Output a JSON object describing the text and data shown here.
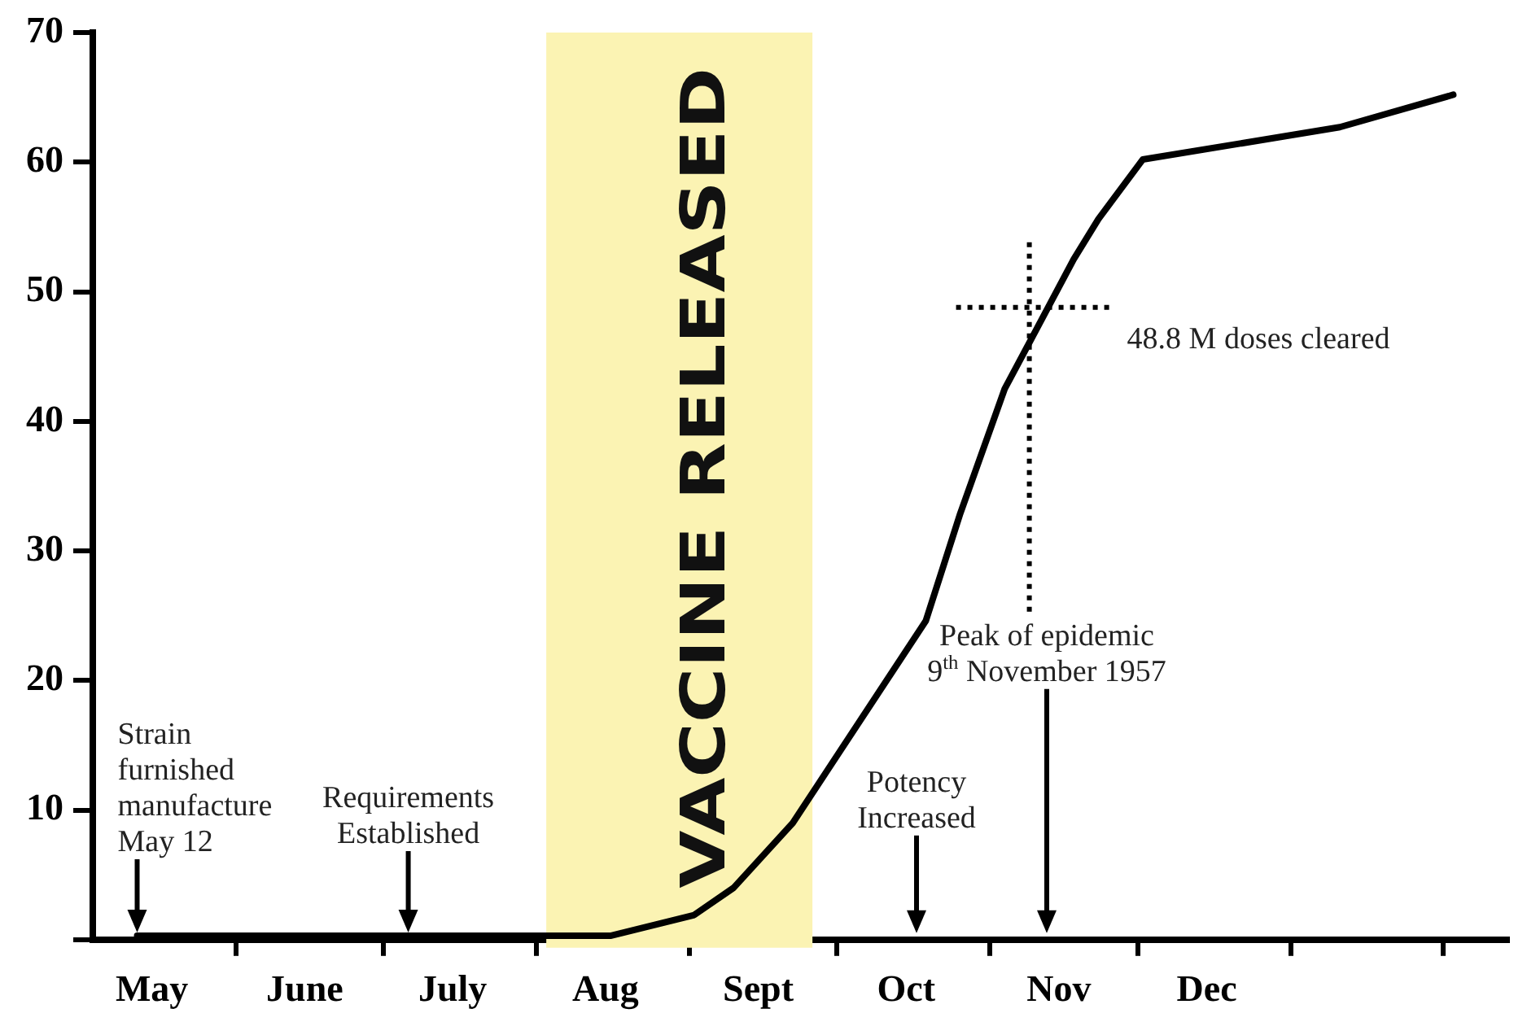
{
  "chart_data": {
    "type": "line",
    "x": [
      "1957-05-12",
      "1957-08-03",
      "1957-08-16",
      "1957-09-02",
      "1957-09-10",
      "1957-09-22",
      "1957-10-19",
      "1957-10-26",
      "1957-11-04",
      "1957-11-11",
      "1957-11-18",
      "1957-11-23",
      "1957-12-02",
      "1958-01-11",
      "1958-02-03"
    ],
    "series": [
      {
        "color": "#000000",
        "values": [
          0.3,
          0.3,
          0.3,
          1.9,
          4,
          9,
          24.6,
          32.9,
          42.5,
          47.5,
          52.5,
          55.6,
          60.2,
          62.7,
          65.2
        ]
      }
    ],
    "xlim": [
      "1957-05-03",
      "1958-02-14"
    ],
    "xticks": [
      {
        "value": "1957-05-15",
        "label": "May"
      },
      {
        "value": "1957-06-01",
        "label": null
      },
      {
        "value": "1957-06-15",
        "label": "June"
      },
      {
        "value": "1957-07-01",
        "label": null
      },
      {
        "value": "1957-07-15",
        "label": "July"
      },
      {
        "value": "1957-08-01",
        "label": null
      },
      {
        "value": "1957-08-15",
        "label": "Aug"
      },
      {
        "value": "1957-09-01",
        "label": null
      },
      {
        "value": "1957-09-15",
        "label": "Sept"
      },
      {
        "value": "1957-10-01",
        "label": null
      },
      {
        "value": "1957-10-15",
        "label": "Oct"
      },
      {
        "value": "1957-11-01",
        "label": null
      },
      {
        "value": "1957-11-15",
        "label": "Nov"
      },
      {
        "value": "1957-12-01",
        "label": null
      },
      {
        "value": "1957-12-15",
        "label": "Dec"
      },
      {
        "value": "1958-01-01",
        "label": null
      },
      {
        "value": "1958-02-01",
        "label": null
      }
    ],
    "ylim": [
      0,
      70
    ],
    "yticks": [
      {
        "value": 0,
        "label": null
      },
      10,
      20,
      30,
      40,
      50,
      60,
      70
    ],
    "grid": false,
    "legend": false,
    "marker": "none",
    "line_style": "solid",
    "bands": [
      {
        "axis": "x",
        "from": "1957-08-03",
        "to": "1957-09-26",
        "label": "VACCINE RELEASED",
        "color": "#fbf3b3"
      }
    ],
    "ref_lines": [
      {
        "axis": "y",
        "value": 48.8,
        "label": "48.8 M doses cleared",
        "line_style": "dotted"
      },
      {
        "axis": "x",
        "value": "1957-11-09",
        "line_style": "dotted"
      }
    ],
    "annotations": [
      {
        "text": "Strain\nfurnished\nmanufacture\nMay 12",
        "x": "1957-05-12",
        "y": 0.3
      },
      {
        "text": "Requirements\nEstablished",
        "x": "1957-07-06",
        "y": 0.3
      },
      "Potency\nIncreased",
      "Peak of epidemic\n9$^{th}$ November 1957"
    ]
  }
}
